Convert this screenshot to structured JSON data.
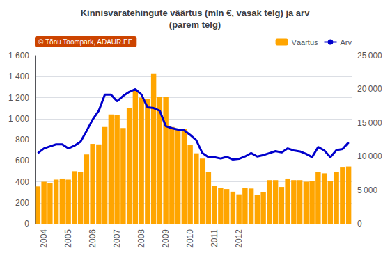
{
  "chart_data": {
    "type": "bar",
    "title": "Kinnisvaratehingute väärtus (mln €, vasak telg) ja arv\n(parem telg)",
    "annotation": "© Tõnu Toompark, ADAUR.EE",
    "categories": [
      null,
      "2004",
      null,
      null,
      null,
      "2005",
      null,
      null,
      null,
      "2006",
      null,
      null,
      null,
      "2007",
      null,
      null,
      null,
      "2008",
      null,
      null,
      null,
      "2009",
      null,
      null,
      null,
      "2010",
      null,
      null,
      null,
      "2011",
      null,
      null,
      null,
      "2012",
      null,
      null,
      null,
      null,
      null,
      null,
      null,
      null,
      null,
      null,
      null,
      null,
      null,
      null,
      null,
      null,
      null,
      null
    ],
    "series": [
      {
        "name": "Väärtus",
        "type": "bar",
        "color": "#FFA500",
        "values": [
          355,
          400,
          390,
          420,
          430,
          420,
          500,
          490,
          660,
          760,
          755,
          920,
          1040,
          1035,
          910,
          1100,
          1265,
          1200,
          1185,
          1430,
          1210,
          1205,
          920,
          905,
          900,
          750,
          670,
          620,
          490,
          360,
          340,
          330,
          305,
          280,
          340,
          335,
          275,
          300,
          415,
          415,
          350,
          430,
          415,
          415,
          400,
          410,
          490,
          480,
          405,
          490,
          535,
          545
        ]
      },
      {
        "name": "Arv",
        "type": "line",
        "color": "#0000CC",
        "axis": "y2",
        "values": [
          10500,
          11200,
          11500,
          11800,
          11800,
          11200,
          11600,
          12200,
          13800,
          15500,
          16800,
          19200,
          19200,
          18200,
          19000,
          19600,
          20000,
          19200,
          17300,
          17200,
          16800,
          14500,
          14200,
          14000,
          13900,
          13200,
          12400,
          10500,
          9900,
          9900,
          9700,
          9950,
          9550,
          9650,
          10000,
          10500,
          10000,
          10200,
          10500,
          10800,
          10600,
          11200,
          10900,
          10750,
          10400,
          9900,
          11400,
          10900,
          9900,
          10950,
          11100,
          12100
        ]
      }
    ],
    "ylim": [
      0,
      1600
    ],
    "yticks": [
      0,
      200,
      400,
      600,
      800,
      {
        "value": 1000,
        "label": "1 000"
      },
      {
        "value": 1200,
        "label": "1 200"
      },
      {
        "value": 1400,
        "label": "1 400"
      },
      {
        "value": 1600,
        "label": "1 600"
      }
    ],
    "y2lim": [
      0,
      25000
    ],
    "y2ticks": [
      0,
      {
        "value": 5000,
        "label": "5 000"
      },
      {
        "value": 10000,
        "label": "10 000"
      },
      {
        "value": 15000,
        "label": "15 000"
      },
      {
        "value": 20000,
        "label": "20 000"
      },
      {
        "value": 25000,
        "label": "25 000"
      }
    ],
    "grid": true,
    "legend": "upper right"
  }
}
